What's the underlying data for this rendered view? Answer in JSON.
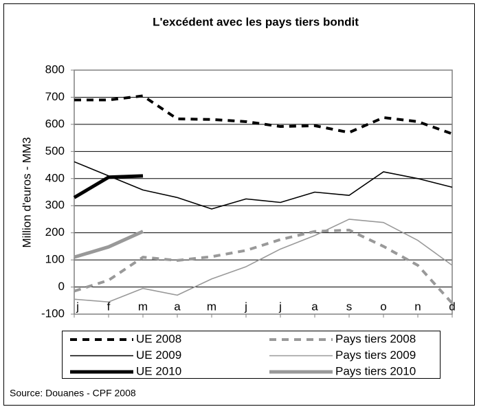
{
  "chart_data": {
    "type": "line",
    "title": "L'excédent avec les pays tiers bondit",
    "y_label": "Million d'euros - MM3",
    "source": "Source: Douanes - CPF 2008",
    "categories": [
      "j",
      "f",
      "m",
      "a",
      "m",
      "j",
      "j",
      "a",
      "s",
      "o",
      "n",
      "d"
    ],
    "ylim": [
      -100,
      800
    ],
    "yticks": [
      -100,
      0,
      100,
      200,
      300,
      400,
      500,
      600,
      700,
      800
    ],
    "grid": true,
    "series": [
      {
        "name": "UE 2008",
        "color": "#000000",
        "style": "dashed",
        "values": [
          690,
          690,
          705,
          620,
          618,
          610,
          592,
          595,
          570,
          625,
          610,
          565
        ]
      },
      {
        "name": "Pays tiers 2008",
        "color": "#999999",
        "style": "dashed",
        "values": [
          -15,
          25,
          110,
          98,
          112,
          135,
          175,
          205,
          210,
          150,
          80,
          -60
        ]
      },
      {
        "name": "UE 2009",
        "color": "#000000",
        "style": "thin",
        "values": [
          462,
          410,
          358,
          330,
          288,
          325,
          312,
          350,
          338,
          425,
          400,
          368
        ]
      },
      {
        "name": "Pays tiers 2009",
        "color": "#999999",
        "style": "thin",
        "values": [
          -45,
          -55,
          -5,
          -30,
          30,
          75,
          140,
          190,
          250,
          238,
          172,
          80
        ]
      },
      {
        "name": "UE 2010",
        "color": "#000000",
        "style": "thick",
        "values": [
          330,
          405,
          410,
          null,
          null,
          null,
          null,
          null,
          null,
          null,
          null,
          null
        ]
      },
      {
        "name": "Pays tiers 2010",
        "color": "#999999",
        "style": "thick",
        "values": [
          110,
          148,
          205,
          null,
          null,
          null,
          null,
          null,
          null,
          null,
          null,
          null
        ]
      }
    ]
  }
}
